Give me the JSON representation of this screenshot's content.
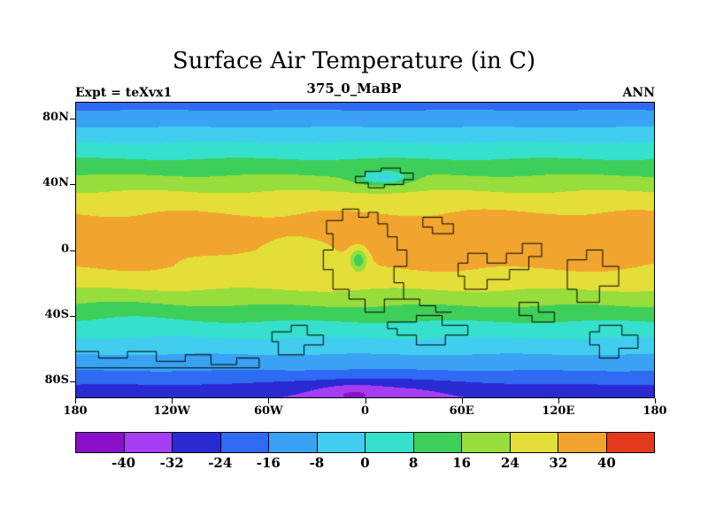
{
  "chart_data": {
    "type": "heatmap",
    "title": "Surface Air Temperature (in C)",
    "subtitle": "375_0_MaBP",
    "experiment_label": "Expt = teXvx1",
    "season_label": "ANN",
    "x_tick_labels": [
      "180",
      "120W",
      "60W",
      "0",
      "60E",
      "120E",
      "180"
    ],
    "x_tick_lons": [
      -180,
      -120,
      -60,
      0,
      60,
      120,
      180
    ],
    "y_tick_labels": [
      "80N",
      "40N",
      "0",
      "40S",
      "80S"
    ],
    "y_tick_lats": [
      80,
      40,
      0,
      -40,
      -80
    ],
    "lon_range": [
      -180,
      180
    ],
    "lat_range": [
      -90,
      90
    ],
    "colorbar": {
      "tick_labels": [
        "-40",
        "-32",
        "-24",
        "-16",
        "-8",
        "0",
        "8",
        "16",
        "24",
        "32",
        "40"
      ],
      "levels": [
        -40,
        -32,
        -24,
        -16,
        -8,
        0,
        8,
        16,
        24,
        32,
        40
      ],
      "colors": [
        "#8a0fc8",
        "#a53df2",
        "#2a2ad2",
        "#2e6bf2",
        "#3aa2f2",
        "#41cdf0",
        "#35e0cd",
        "#3ecf5a",
        "#97dd3c",
        "#e3df38",
        "#f2a52e",
        "#e5391d"
      ]
    },
    "zonal_profile": {
      "lat": [
        -90,
        -85,
        -80,
        -75,
        -70,
        -60,
        -50,
        -40,
        -30,
        -20,
        -10,
        0,
        10,
        20,
        30,
        40,
        50,
        60,
        70,
        80,
        90
      ],
      "temp_c": [
        -30,
        -26.5,
        -22,
        -17,
        -13,
        -5,
        3,
        11,
        19.5,
        27.5,
        32.5,
        34.5,
        34.5,
        33,
        28.5,
        20.5,
        12.5,
        4.5,
        -3.5,
        -12.5,
        -19
      ]
    },
    "anomalies": [
      {
        "lon": 12,
        "lat": 44,
        "amp": -18,
        "slon": 11,
        "slat": 3
      },
      {
        "lon": -4,
        "lat": -6,
        "amp": -22,
        "slon": 3.5,
        "slat": 4.5
      },
      {
        "lon": -55,
        "lat": -2,
        "amp": -4,
        "slon": 28,
        "slat": 8
      },
      {
        "lon": 100,
        "lat": 6,
        "amp": 2,
        "slon": 45,
        "slat": 10
      },
      {
        "lon": 5,
        "lat": -86,
        "amp": -7,
        "slon": 40,
        "slat": 6
      },
      {
        "lon": -8,
        "lat": -88,
        "amp": -6,
        "slon": 12,
        "slat": 4
      },
      {
        "lon": -150,
        "lat": -38,
        "amp": -2,
        "slon": 30,
        "slat": 8
      }
    ],
    "wiggle": {
      "amp": 1.0,
      "period_deg": 95
    },
    "coastlines": [
      [
        [
          -6,
          41
        ],
        [
          -6,
          45
        ],
        [
          0,
          45
        ],
        [
          0,
          48
        ],
        [
          10,
          48
        ],
        [
          10,
          50
        ],
        [
          22,
          50
        ],
        [
          22,
          47
        ],
        [
          30,
          47
        ],
        [
          30,
          43
        ],
        [
          24,
          43
        ],
        [
          24,
          40
        ],
        [
          12,
          40
        ],
        [
          12,
          38
        ],
        [
          2,
          38
        ],
        [
          2,
          41
        ],
        [
          -6,
          41
        ]
      ],
      [
        [
          -14,
          25
        ],
        [
          -4,
          25
        ],
        [
          -4,
          20
        ],
        [
          2,
          20
        ],
        [
          2,
          23
        ],
        [
          8,
          23
        ],
        [
          8,
          16
        ],
        [
          14,
          16
        ],
        [
          14,
          8
        ],
        [
          20,
          8
        ],
        [
          20,
          0
        ],
        [
          26,
          0
        ],
        [
          26,
          -10
        ],
        [
          18,
          -10
        ],
        [
          18,
          -20
        ],
        [
          24,
          -20
        ],
        [
          24,
          -30
        ],
        [
          12,
          -30
        ],
        [
          12,
          -38
        ],
        [
          0,
          -38
        ],
        [
          0,
          -30
        ],
        [
          -10,
          -30
        ],
        [
          -10,
          -24
        ],
        [
          -20,
          -24
        ],
        [
          -20,
          -12
        ],
        [
          -26,
          -12
        ],
        [
          -26,
          0
        ],
        [
          -20,
          0
        ],
        [
          -20,
          10
        ],
        [
          -24,
          10
        ],
        [
          -24,
          18
        ],
        [
          -14,
          18
        ],
        [
          -14,
          25
        ]
      ],
      [
        [
          36,
          20
        ],
        [
          48,
          20
        ],
        [
          48,
          16
        ],
        [
          55,
          16
        ],
        [
          55,
          10
        ],
        [
          42,
          10
        ],
        [
          42,
          14
        ],
        [
          36,
          14
        ],
        [
          36,
          20
        ]
      ],
      [
        [
          58,
          -8
        ],
        [
          64,
          -8
        ],
        [
          64,
          -2
        ],
        [
          76,
          -2
        ],
        [
          76,
          -8
        ],
        [
          88,
          -8
        ],
        [
          88,
          -2
        ],
        [
          98,
          -2
        ],
        [
          98,
          4
        ],
        [
          110,
          4
        ],
        [
          110,
          -4
        ],
        [
          102,
          -4
        ],
        [
          102,
          -12
        ],
        [
          90,
          -12
        ],
        [
          90,
          -18
        ],
        [
          76,
          -18
        ],
        [
          76,
          -24
        ],
        [
          62,
          -24
        ],
        [
          62,
          -16
        ],
        [
          58,
          -16
        ],
        [
          58,
          -8
        ]
      ],
      [
        [
          126,
          -6
        ],
        [
          138,
          -6
        ],
        [
          138,
          0
        ],
        [
          148,
          0
        ],
        [
          148,
          -10
        ],
        [
          158,
          -10
        ],
        [
          158,
          -22
        ],
        [
          146,
          -22
        ],
        [
          146,
          -32
        ],
        [
          132,
          -32
        ],
        [
          132,
          -24
        ],
        [
          126,
          -24
        ],
        [
          126,
          -6
        ]
      ],
      [
        [
          -180,
          -62
        ],
        [
          -166,
          -62
        ],
        [
          -166,
          -66
        ],
        [
          -148,
          -66
        ],
        [
          -148,
          -62
        ],
        [
          -130,
          -62
        ],
        [
          -130,
          -68
        ],
        [
          -112,
          -68
        ],
        [
          -112,
          -64
        ],
        [
          -96,
          -64
        ],
        [
          -96,
          -70
        ],
        [
          -80,
          -70
        ],
        [
          -80,
          -66
        ],
        [
          -66,
          -66
        ],
        [
          -66,
          -72
        ],
        [
          -180,
          -72
        ]
      ],
      [
        [
          -58,
          -50
        ],
        [
          -46,
          -50
        ],
        [
          -46,
          -46
        ],
        [
          -36,
          -46
        ],
        [
          -36,
          -52
        ],
        [
          -26,
          -52
        ],
        [
          -26,
          -58
        ],
        [
          -38,
          -58
        ],
        [
          -38,
          -64
        ],
        [
          -54,
          -64
        ],
        [
          -54,
          -56
        ],
        [
          -58,
          -56
        ],
        [
          -58,
          -50
        ]
      ],
      [
        [
          14,
          -44
        ],
        [
          32,
          -44
        ],
        [
          32,
          -40
        ],
        [
          48,
          -40
        ],
        [
          48,
          -46
        ],
        [
          64,
          -46
        ],
        [
          64,
          -52
        ],
        [
          50,
          -52
        ],
        [
          50,
          -58
        ],
        [
          32,
          -58
        ],
        [
          32,
          -52
        ],
        [
          20,
          -52
        ],
        [
          20,
          -48
        ],
        [
          14,
          -48
        ],
        [
          14,
          -44
        ]
      ],
      [
        [
          146,
          -46
        ],
        [
          160,
          -46
        ],
        [
          160,
          -52
        ],
        [
          170,
          -52
        ],
        [
          170,
          -60
        ],
        [
          158,
          -60
        ],
        [
          158,
          -66
        ],
        [
          146,
          -66
        ],
        [
          146,
          -58
        ],
        [
          140,
          -58
        ],
        [
          140,
          -50
        ],
        [
          146,
          -50
        ],
        [
          146,
          -46
        ]
      ],
      [
        [
          96,
          -32
        ],
        [
          108,
          -32
        ],
        [
          108,
          -38
        ],
        [
          118,
          -38
        ],
        [
          118,
          -44
        ],
        [
          104,
          -44
        ],
        [
          104,
          -40
        ],
        [
          96,
          -40
        ],
        [
          96,
          -32
        ]
      ],
      [
        [
          24,
          -30
        ],
        [
          34,
          -30
        ],
        [
          34,
          -34
        ],
        [
          44,
          -34
        ],
        [
          44,
          -38
        ],
        [
          54,
          -38
        ]
      ]
    ]
  }
}
